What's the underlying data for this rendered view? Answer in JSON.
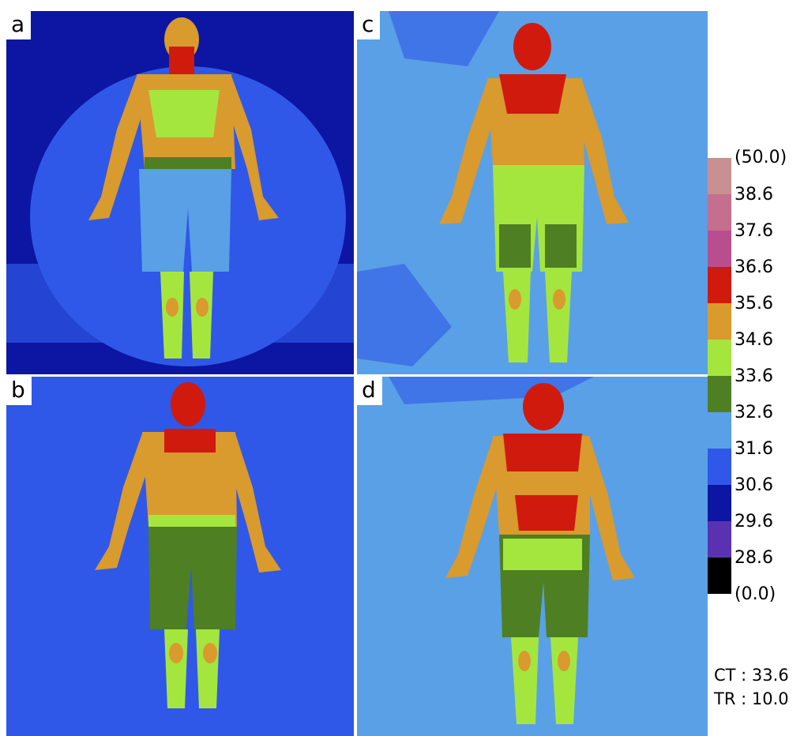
{
  "panels": [
    {
      "label": "a"
    },
    {
      "label": "b"
    },
    {
      "label": "c"
    },
    {
      "label": "d"
    }
  ],
  "scale": {
    "labels": [
      "(50.0)",
      "38.6",
      "37.6",
      "36.6",
      "35.6",
      "34.6",
      "33.6",
      "32.6",
      "31.6",
      "30.6",
      "29.6",
      "28.6",
      "(0.0)"
    ],
    "colors": [
      "#c89090",
      "#c46f8e",
      "#b84e8e",
      "#d01a0e",
      "#d99a2e",
      "#a5e63e",
      "#4e7f22",
      "#5aa0e6",
      "#2f58e8",
      "#0c16a2",
      "#5a32b0",
      "#000000"
    ]
  },
  "info": {
    "ct": "CT : 33.6",
    "tr": "TR : 10.0"
  }
}
